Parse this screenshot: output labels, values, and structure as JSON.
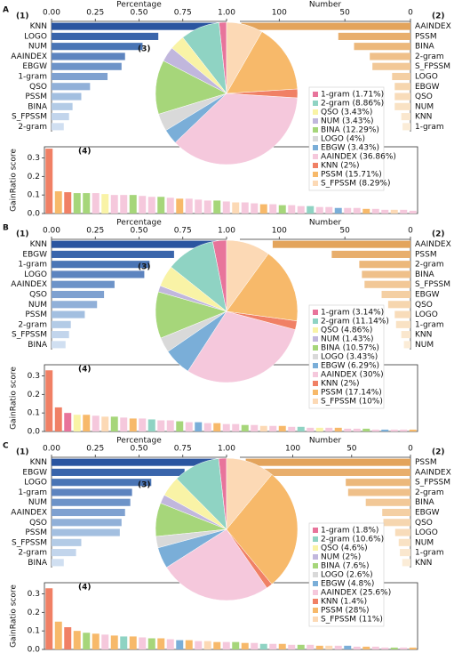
{
  "chart_data": [
    {
      "type": "barh",
      "panel": "A",
      "label": "(1)",
      "title": "Percentage",
      "yaxis_side": "left",
      "categories": [
        "KNN",
        "LOGO",
        "NUM",
        "AAINDEX",
        "EBGW",
        "1-gram",
        "QSO",
        "PSSM",
        "BINA",
        "S_FPSSM",
        "2-gram"
      ],
      "values": [
        1.0,
        0.61,
        0.52,
        0.42,
        0.4,
        0.32,
        0.22,
        0.17,
        0.12,
        0.1,
        0.07
      ],
      "colors": [
        "#2b55a0",
        "#3a65ab",
        "#4a75b5",
        "#5d84bf",
        "#6d93c8",
        "#7fa1d0",
        "#91b0d8",
        "#a3bfe0",
        "#b3cbe6",
        "#c2d5ec",
        "#d0dff1"
      ],
      "xlim": [
        0,
        1.0
      ],
      "xticks": [
        {
          "value": 0,
          "label": "0.00"
        },
        0.25,
        {
          "value": 0.5,
          "label": "0.50"
        },
        0.75,
        {
          "value": 1,
          "label": "1.00"
        }
      ]
    },
    {
      "type": "barh",
      "label": "(2)",
      "title": "Number",
      "yaxis_side": "right",
      "categories": [
        "AAINDEX",
        "PSSM",
        "BINA",
        "2-gram",
        "S_FPSSM",
        "LOGO",
        "EBGW",
        "QSO",
        "NUM",
        "KNN",
        "1-gram"
      ],
      "values": [
        129,
        55,
        43,
        31,
        29,
        14,
        12,
        12,
        12,
        7,
        6
      ],
      "colors": [
        "#e3a45c",
        "#e8ae6c",
        "#ecb87b",
        "#efc08a",
        "#f2c897",
        "#f4cfa3",
        "#f6d6af",
        "#f8dcba",
        "#f9e2c4",
        "#fae7ce",
        "#fbecd7"
      ],
      "xlim": [
        130,
        0
      ],
      "xticks": [
        100,
        50,
        0
      ]
    },
    {
      "type": "gainbar",
      "label": "(4)",
      "y_label": "GainRatio score",
      "values": [
        0.35,
        0.12,
        0.115,
        0.11,
        0.11,
        0.11,
        0.105,
        0.1,
        0.1,
        0.1,
        0.095,
        0.09,
        0.09,
        0.085,
        0.08,
        0.08,
        0.075,
        0.07,
        0.07,
        0.065,
        0.06,
        0.06,
        0.055,
        0.05,
        0.05,
        0.045,
        0.045,
        0.04,
        0.04,
        0.035,
        0.035,
        0.03,
        0.03,
        0.03,
        0.025,
        0.025,
        0.02,
        0.02,
        0.02,
        0.015
      ],
      "colors": [
        "#f08065",
        "#f7b96a",
        "#f08065",
        "#a6d67a",
        "#a6d67a",
        "#f5c8dc",
        "#f9f3a6",
        "#f5c8dc",
        "#f5c8dc",
        "#a6d67a",
        "#f5c8dc",
        "#f5c8dc",
        "#a6d67a",
        "#f5c8dc",
        "#f7b96a",
        "#f5c8dc",
        "#f5c8dc",
        "#f5c8dc",
        "#a6d67a",
        "#f5c8dc",
        "#fcd9b5",
        "#f5c8dc",
        "#f5c8dc",
        "#f7b96a",
        "#f5c8dc",
        "#a6d67a",
        "#f5c8dc",
        "#f5c8dc",
        "#8fd3c3",
        "#f5c8dc",
        "#f5c8dc",
        "#7aaed8",
        "#f5c8dc",
        "#f5c8dc",
        "#f7b96a",
        "#f5c8dc",
        "#f5c8dc",
        "#fcd9b5",
        "#f5c8dc",
        "#f5c8dc"
      ],
      "ylim": [
        0,
        0.36
      ],
      "yticks": [
        {
          "value": 0,
          "label": "0.0"
        },
        0.1,
        0.2,
        0.3
      ]
    },
    {
      "type": "pie",
      "label": "(3)",
      "categories": [
        "1-gram",
        "2-gram",
        "QSO",
        "NUM",
        "BINA",
        "LOGO",
        "EBGW",
        "AAINDEX",
        "KNN",
        "PSSM",
        "S_FPSSM"
      ],
      "values": [
        1.71,
        8.86,
        3.43,
        3.43,
        12.29,
        4,
        3.43,
        36.86,
        2,
        15.71,
        8.29
      ],
      "legend_labels": [
        "1-gram (1.71%)",
        "2-gram (8.86%)",
        "QSO (3.43%)",
        "NUM (3.43%)",
        "BINA (12.29%)",
        "LOGO (4%)",
        "EBGW (3.43%)",
        "AAINDEX (36.86%)",
        "KNN (2%)",
        "PSSM (15.71%)",
        "S_FPSSM (8.29%)"
      ],
      "colors": [
        "#e8749b",
        "#8fd3c3",
        "#f9f3a6",
        "#c1b7dd",
        "#a6d67a",
        "#d9d9d9",
        "#7aaed8",
        "#f5c8dc",
        "#f08065",
        "#f7b96a",
        "#fcd9b5"
      ]
    },
    {
      "type": "barh",
      "panel": "B",
      "label": "(1)",
      "title": "Percentage",
      "yaxis_side": "left",
      "categories": [
        "KNN",
        "EBGW",
        "1-gram",
        "LOGO",
        "AAINDEX",
        "QSO",
        "NUM",
        "PSSM",
        "2-gram",
        "S_FPSSM",
        "BINA"
      ],
      "values": [
        1.0,
        0.7,
        0.56,
        0.53,
        0.36,
        0.3,
        0.26,
        0.19,
        0.11,
        0.1,
        0.08
      ],
      "colors": [
        "#2b55a0",
        "#3a65ab",
        "#4a75b5",
        "#5d84bf",
        "#6d93c8",
        "#7fa1d0",
        "#91b0d8",
        "#a3bfe0",
        "#b3cbe6",
        "#c2d5ec",
        "#d0dff1"
      ],
      "xlim": [
        0,
        1.0
      ],
      "xticks": [
        {
          "value": 0,
          "label": "0.00"
        },
        0.25,
        {
          "value": 0.5,
          "label": "0.50"
        },
        0.75,
        {
          "value": 1,
          "label": "1.00"
        }
      ]
    },
    {
      "type": "barh",
      "label": "(2)",
      "title": "Number",
      "yaxis_side": "right",
      "categories": [
        "AAINDEX",
        "PSSM",
        "2-gram",
        "BINA",
        "S_FPSSM",
        "EBGW",
        "QSO",
        "LOGO",
        "1-gram",
        "KNN",
        "NUM"
      ],
      "values": [
        105,
        60,
        39,
        37,
        35,
        22,
        17,
        12,
        11,
        7,
        5
      ],
      "colors": [
        "#e3a45c",
        "#e8ae6c",
        "#ecb87b",
        "#efc08a",
        "#f2c897",
        "#f4cfa3",
        "#f6d6af",
        "#f8dcba",
        "#f9e2c4",
        "#fae7ce",
        "#fbecd7"
      ],
      "xlim": [
        130,
        0
      ],
      "xticks": [
        100,
        50,
        0
      ]
    },
    {
      "type": "gainbar",
      "label": "(4)",
      "y_label": "GainRatio score",
      "values": [
        0.33,
        0.13,
        0.1,
        0.09,
        0.09,
        0.085,
        0.08,
        0.08,
        0.075,
        0.07,
        0.07,
        0.065,
        0.06,
        0.06,
        0.055,
        0.05,
        0.05,
        0.045,
        0.045,
        0.04,
        0.04,
        0.035,
        0.035,
        0.03,
        0.03,
        0.03,
        0.025,
        0.025,
        0.02,
        0.02,
        0.02,
        0.02,
        0.015,
        0.015,
        0.015,
        0.01,
        0.01,
        0.01,
        0.01,
        0.01
      ],
      "colors": [
        "#f08065",
        "#f08065",
        "#e8749b",
        "#f9f3a6",
        "#f7b96a",
        "#f5c8dc",
        "#fcd9b5",
        "#a6d67a",
        "#f5c8dc",
        "#f7b96a",
        "#f5c8dc",
        "#8fd3c3",
        "#f5c8dc",
        "#f5c8dc",
        "#a6d67a",
        "#f5c8dc",
        "#7aaed8",
        "#f5c8dc",
        "#f7b96a",
        "#f5c8dc",
        "#f5c8dc",
        "#a6d67a",
        "#f5c8dc",
        "#fcd9b5",
        "#f5c8dc",
        "#f7b96a",
        "#f5c8dc",
        "#8fd3c3",
        "#f5c8dc",
        "#f9f3a6",
        "#f5c8dc",
        "#f7b96a",
        "#f5c8dc",
        "#f5c8dc",
        "#a6d67a",
        "#f5c8dc",
        "#7aaed8",
        "#f5c8dc",
        "#f5c8dc",
        "#f7b96a"
      ],
      "ylim": [
        0,
        0.36
      ],
      "yticks": [
        {
          "value": 0,
          "label": "0.0"
        },
        0.1,
        0.2,
        0.3
      ]
    },
    {
      "type": "pie",
      "label": "(3)",
      "categories": [
        "1-gram",
        "2-gram",
        "QSO",
        "NUM",
        "BINA",
        "LOGO",
        "EBGW",
        "AAINDEX",
        "KNN",
        "PSSM",
        "S_FPSSM"
      ],
      "values": [
        3.14,
        11.14,
        4.86,
        1.43,
        10.57,
        3.43,
        6.29,
        30,
        2,
        17.14,
        10
      ],
      "legend_labels": [
        "1-gram (3.14%)",
        "2-gram (11.14%)",
        "QSO (4.86%)",
        "NUM (1.43%)",
        "BINA (10.57%)",
        "LOGO (3.43%)",
        "EBGW (6.29%)",
        "AAINDEX (30%)",
        "KNN (2%)",
        "PSSM (17.14%)",
        "S_FPSSM (10%)"
      ],
      "colors": [
        "#e8749b",
        "#8fd3c3",
        "#f9f3a6",
        "#c1b7dd",
        "#a6d67a",
        "#d9d9d9",
        "#7aaed8",
        "#f5c8dc",
        "#f08065",
        "#f7b96a",
        "#fcd9b5"
      ]
    },
    {
      "type": "barh",
      "panel": "C",
      "label": "(1)",
      "title": "Percentage",
      "yaxis_side": "left",
      "categories": [
        "KNN",
        "EBGW",
        "LOGO",
        "1-gram",
        "NUM",
        "AAINDEX",
        "QSO",
        "PSSM",
        "S_FPSSM",
        "2-gram",
        "BINA"
      ],
      "values": [
        1.0,
        0.76,
        0.57,
        0.46,
        0.45,
        0.42,
        0.4,
        0.39,
        0.17,
        0.14,
        0.07
      ],
      "colors": [
        "#2b55a0",
        "#3a65ab",
        "#4a75b5",
        "#5d84bf",
        "#6d93c8",
        "#7fa1d0",
        "#91b0d8",
        "#a3bfe0",
        "#b3cbe6",
        "#c2d5ec",
        "#d0dff1"
      ],
      "xlim": [
        0,
        1.0
      ],
      "xticks": [
        {
          "value": 0,
          "label": "0.00"
        },
        0.25,
        {
          "value": 0.5,
          "label": "0.50"
        },
        0.75,
        {
          "value": 1,
          "label": "1.00"
        }
      ]
    },
    {
      "type": "barh",
      "label": "(2)",
      "title": "Number",
      "yaxis_side": "right",
      "categories": [
        "PSSM",
        "AAINDEX",
        "S_FPSSM",
        "2-gram",
        "BINA",
        "EBGW",
        "QSO",
        "LOGO",
        "NUM",
        "1-gram",
        "KNN"
      ],
      "values": [
        140,
        128,
        55,
        53,
        38,
        24,
        23,
        13,
        10,
        9,
        7
      ],
      "colors": [
        "#e3a45c",
        "#e8ae6c",
        "#ecb87b",
        "#efc08a",
        "#f2c897",
        "#f4cfa3",
        "#f6d6af",
        "#f8dcba",
        "#f9e2c4",
        "#fae7ce",
        "#fbecd7"
      ],
      "xlim": [
        145,
        0
      ],
      "xticks": [
        100,
        50,
        0
      ]
    },
    {
      "type": "gainbar",
      "label": "(4)",
      "y_label": "GainRatio score",
      "values": [
        0.33,
        0.15,
        0.12,
        0.1,
        0.09,
        0.085,
        0.08,
        0.075,
        0.07,
        0.07,
        0.065,
        0.06,
        0.06,
        0.055,
        0.05,
        0.05,
        0.045,
        0.045,
        0.04,
        0.04,
        0.04,
        0.035,
        0.035,
        0.03,
        0.03,
        0.03,
        0.025,
        0.025,
        0.025,
        0.02,
        0.02,
        0.02,
        0.02,
        0.015,
        0.015,
        0.015,
        0.01,
        0.01,
        0.01,
        0.01
      ],
      "colors": [
        "#f08065",
        "#f7b96a",
        "#f08065",
        "#f7b96a",
        "#a6d67a",
        "#f7b96a",
        "#f5c8dc",
        "#f7b96a",
        "#8fd3c3",
        "#f7b96a",
        "#f5c8dc",
        "#a6d67a",
        "#f7b96a",
        "#f5c8dc",
        "#7aaed8",
        "#f7b96a",
        "#f5c8dc",
        "#fcd9b5",
        "#f7b96a",
        "#f5c8dc",
        "#a6d67a",
        "#f7b96a",
        "#f5c8dc",
        "#8fd3c3",
        "#f5c8dc",
        "#f7b96a",
        "#f5c8dc",
        "#a6d67a",
        "#f5c8dc",
        "#f7b96a",
        "#fcd9b5",
        "#f5c8dc",
        "#7aaed8",
        "#f5c8dc",
        "#f7b96a",
        "#f5c8dc",
        "#f5c8dc",
        "#a6d67a",
        "#f5c8dc",
        "#f7b96a"
      ],
      "ylim": [
        0,
        0.36
      ],
      "yticks": [
        {
          "value": 0,
          "label": "0.0"
        },
        0.1,
        0.2,
        0.3
      ]
    },
    {
      "type": "pie",
      "label": "(3)",
      "categories": [
        "1-gram",
        "2-gram",
        "QSO",
        "NUM",
        "BINA",
        "LOGO",
        "EBGW",
        "AAINDEX",
        "KNN",
        "PSSM",
        "S_FPSSM"
      ],
      "values": [
        1.8,
        10.6,
        4.6,
        2,
        7.6,
        2.6,
        4.8,
        25.6,
        1.4,
        28,
        11
      ],
      "legend_labels": [
        "1-gram (1.8%)",
        "2-gram (10.6%)",
        "QSO (4.6%)",
        "NUM (2%)",
        "BINA (7.6%)",
        "LOGO (2.6%)",
        "EBGW (4.8%)",
        "AAINDEX (25.6%)",
        "KNN (1.4%)",
        "PSSM (28%)",
        "S_FPSSM (11%)"
      ],
      "colors": [
        "#e8749b",
        "#8fd3c3",
        "#f9f3a6",
        "#c1b7dd",
        "#a6d67a",
        "#d9d9d9",
        "#7aaed8",
        "#f5c8dc",
        "#f08065",
        "#f7b96a",
        "#fcd9b5"
      ]
    }
  ]
}
